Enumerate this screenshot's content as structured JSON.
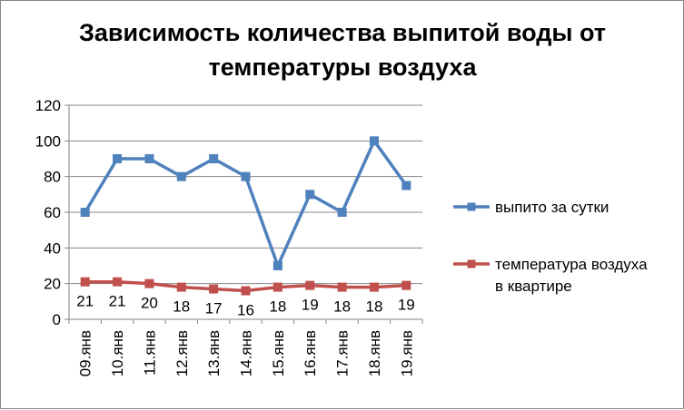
{
  "chart_data": {
    "type": "line",
    "title": [
      "Зависимость количества выпитой воды от",
      "температуры воздуха"
    ],
    "xlabel": "",
    "ylabel": "",
    "categories": [
      "09.янв",
      "10.янв",
      "11.янв",
      "12.янв",
      "13.янв",
      "14.янв",
      "15.янв",
      "16.янв",
      "17.янв",
      "18.янв",
      "19.янв"
    ],
    "ylim": [
      0,
      120
    ],
    "yticks": [
      "0",
      "20",
      "40",
      "60",
      "80",
      "100",
      "120"
    ],
    "grid": "horizontal",
    "legend_position": "right",
    "series": [
      {
        "name": "выпито за сутки",
        "color": "#4F81BD",
        "marker": "square",
        "values": [
          60,
          90,
          90,
          80,
          90,
          80,
          30,
          70,
          60,
          100,
          75
        ],
        "data_labels": []
      },
      {
        "name": "температура воздуха в квартире",
        "legend_lines": [
          "температура воздуха",
          "в квартире"
        ],
        "color": "#C0504D",
        "marker": "square",
        "values": [
          21,
          21,
          20,
          18,
          17,
          16,
          18,
          19,
          18,
          18,
          19
        ],
        "data_labels": [
          "21",
          "21",
          "20",
          "18",
          "17",
          "16",
          "18",
          "19",
          "18",
          "18",
          "19"
        ]
      }
    ]
  }
}
